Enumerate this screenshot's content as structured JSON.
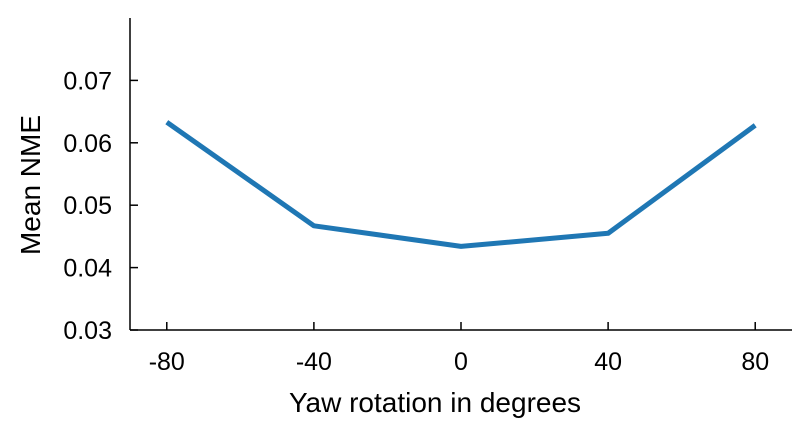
{
  "chart_data": {
    "type": "line",
    "title": "",
    "xlabel": "Yaw rotation in degrees",
    "ylabel": "Mean NME",
    "x": [
      -80,
      -40,
      0,
      40,
      80
    ],
    "series": [
      {
        "values": [
          0.0633,
          0.0467,
          0.0434,
          0.0455,
          0.0628
        ],
        "color": "#1f77b4"
      }
    ],
    "xlim": [
      -90,
      90
    ],
    "ylim": [
      0.03,
      0.08
    ],
    "xticks": [
      -80,
      -40,
      0,
      40,
      80
    ],
    "xtick_labels": [
      "-80",
      "-40",
      "0",
      "40",
      "80"
    ],
    "yticks": [
      0.03,
      0.04,
      0.05,
      0.06,
      0.07
    ],
    "ytick_labels": [
      "0.03",
      "0.04",
      "0.05",
      "0.06",
      "0.07"
    ],
    "grid": false,
    "legend": "none"
  }
}
